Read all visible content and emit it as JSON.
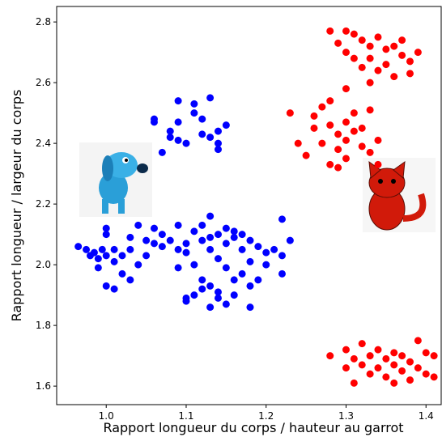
{
  "chart_data": {
    "type": "scatter",
    "xlabel": "Rapport longueur du corps / hauteur au garrot",
    "ylabel": "Rapport longueur / largeur du corps",
    "xlim": [
      0.938,
      1.419
    ],
    "ylim": [
      1.539,
      2.851
    ],
    "xticks": [
      {
        "value": 1,
        "label": "1.0"
      },
      1.1,
      1.2,
      1.3,
      1.4
    ],
    "yticks": [
      1.6,
      1.8,
      {
        "value": 2,
        "label": "2.0"
      },
      2.2,
      2.4,
      2.6,
      2.8
    ],
    "series": [
      {
        "color": "#0000ff",
        "x": [
          1.06,
          1.06,
          1.07,
          1.08,
          1.09,
          1.09,
          1.08,
          1.09,
          1.11,
          1.11,
          1.12,
          1.12,
          1.13,
          1.13,
          1.14,
          1.14,
          1.15,
          1.14,
          1.1,
          0.965,
          0.975,
          0.98,
          0.985,
          0.99,
          0.995,
          1.0,
          1.0,
          1.0,
          0.99,
          1.01,
          1.01,
          1.0,
          1.01,
          1.02,
          1.03,
          1.03,
          1.03,
          1.04,
          1.04,
          1.05,
          1.05,
          1.02,
          1.06,
          1.06,
          1.07,
          1.07,
          1.08,
          1.09,
          1.09,
          1.1,
          1.1,
          1.11,
          1.11,
          1.12,
          1.12,
          1.13,
          1.13,
          1.13,
          1.14,
          1.14,
          1.15,
          1.15,
          1.16,
          1.16,
          1.17,
          1.17,
          1.18,
          1.18,
          1.19,
          1.2,
          1.2,
          1.21,
          1.22,
          1.22,
          1.23,
          1.22,
          1.09,
          1.1,
          1.1,
          1.11,
          1.12,
          1.13,
          1.13,
          1.14,
          1.14,
          1.15,
          1.16,
          1.16,
          1.17,
          1.18,
          1.18,
          1.15,
          1.19,
          1.12
        ],
        "values": [
          2.48,
          2.47,
          2.37,
          2.44,
          2.54,
          2.47,
          2.42,
          2.41,
          2.53,
          2.5,
          2.48,
          2.43,
          2.55,
          2.42,
          2.4,
          2.44,
          2.46,
          2.38,
          2.4,
          2.06,
          2.05,
          2.03,
          2.04,
          2.02,
          2.05,
          2.1,
          2.12,
          2.03,
          1.99,
          2.01,
          2.05,
          1.93,
          1.92,
          1.97,
          1.95,
          2.09,
          2.05,
          2.13,
          2.0,
          2.03,
          2.08,
          2.03,
          2.12,
          2.07,
          2.1,
          2.06,
          2.08,
          2.13,
          2.05,
          2.07,
          2.04,
          2.11,
          2.0,
          2.08,
          2.13,
          2.09,
          2.05,
          2.16,
          2.1,
          2.02,
          2.12,
          2.07,
          2.11,
          2.09,
          2.1,
          2.05,
          2.08,
          2.01,
          2.06,
          2.04,
          2.0,
          2.05,
          2.15,
          2.03,
          2.08,
          1.97,
          1.99,
          1.88,
          1.89,
          1.9,
          1.92,
          1.86,
          1.93,
          1.91,
          1.89,
          1.87,
          1.95,
          1.9,
          1.97,
          1.93,
          1.86,
          1.99,
          1.95,
          1.95
        ]
      },
      {
        "color": "#ff0000",
        "x": [
          1.28,
          1.29,
          1.3,
          1.31,
          1.31,
          1.32,
          1.32,
          1.33,
          1.33,
          1.34,
          1.34,
          1.35,
          1.35,
          1.36,
          1.36,
          1.37,
          1.37,
          1.38,
          1.38,
          1.39,
          1.3,
          1.33,
          1.3,
          1.23,
          1.24,
          1.25,
          1.26,
          1.26,
          1.27,
          1.27,
          1.28,
          1.28,
          1.28,
          1.29,
          1.29,
          1.3,
          1.3,
          1.3,
          1.31,
          1.31,
          1.32,
          1.32,
          1.33,
          1.33,
          1.34,
          1.34,
          1.29,
          1.28,
          1.3,
          1.3,
          1.31,
          1.31,
          1.32,
          1.32,
          1.33,
          1.33,
          1.34,
          1.34,
          1.35,
          1.35,
          1.36,
          1.36,
          1.37,
          1.37,
          1.38,
          1.38,
          1.39,
          1.39,
          1.4,
          1.4,
          1.41,
          1.41,
          1.36
        ],
        "values": [
          2.77,
          2.73,
          2.7,
          2.76,
          2.68,
          2.74,
          2.65,
          2.72,
          2.68,
          2.75,
          2.64,
          2.71,
          2.66,
          2.72,
          2.62,
          2.69,
          2.74,
          2.67,
          2.63,
          2.7,
          2.58,
          2.6,
          2.77,
          2.5,
          2.4,
          2.36,
          2.45,
          2.49,
          2.52,
          2.4,
          2.54,
          2.46,
          2.33,
          2.43,
          2.38,
          2.47,
          2.41,
          2.35,
          2.44,
          2.5,
          2.39,
          2.45,
          2.51,
          2.37,
          2.41,
          2.33,
          2.32,
          1.7,
          1.72,
          1.66,
          1.69,
          1.61,
          1.67,
          1.74,
          1.7,
          1.64,
          1.72,
          1.66,
          1.69,
          1.63,
          1.71,
          1.67,
          1.65,
          1.7,
          1.68,
          1.62,
          1.75,
          1.66,
          1.71,
          1.64,
          1.63,
          1.7,
          1.61
        ]
      }
    ]
  }
}
